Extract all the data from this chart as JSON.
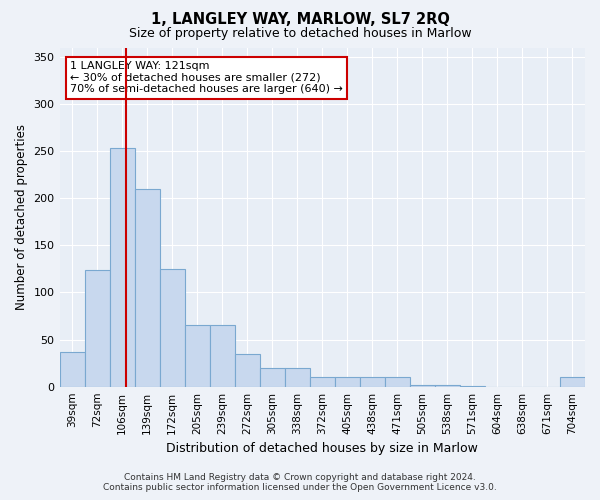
{
  "title": "1, LANGLEY WAY, MARLOW, SL7 2RQ",
  "subtitle": "Size of property relative to detached houses in Marlow",
  "xlabel": "Distribution of detached houses by size in Marlow",
  "ylabel": "Number of detached properties",
  "bar_labels": [
    "39sqm",
    "72sqm",
    "106sqm",
    "139sqm",
    "172sqm",
    "205sqm",
    "239sqm",
    "272sqm",
    "305sqm",
    "338sqm",
    "372sqm",
    "405sqm",
    "438sqm",
    "471sqm",
    "505sqm",
    "538sqm",
    "571sqm",
    "604sqm",
    "638sqm",
    "671sqm",
    "704sqm"
  ],
  "bar_values": [
    37,
    124,
    253,
    210,
    125,
    65,
    65,
    35,
    20,
    20,
    10,
    10,
    10,
    10,
    2,
    2,
    1,
    0,
    0,
    0,
    10
  ],
  "bar_color": "#c8d8ee",
  "bar_edge_color": "#7aa8d0",
  "vline_x_index": 2,
  "vline_color": "#cc0000",
  "ylim": [
    0,
    360
  ],
  "yticks": [
    0,
    50,
    100,
    150,
    200,
    250,
    300,
    350
  ],
  "annotation_text": "1 LANGLEY WAY: 121sqm\n← 30% of detached houses are smaller (272)\n70% of semi-detached houses are larger (640) →",
  "annotation_box_color": "#cc0000",
  "footer_line1": "Contains HM Land Registry data © Crown copyright and database right 2024.",
  "footer_line2": "Contains public sector information licensed under the Open Government Licence v3.0.",
  "bg_color": "#eef2f8",
  "plot_bg_color": "#e8eef6"
}
